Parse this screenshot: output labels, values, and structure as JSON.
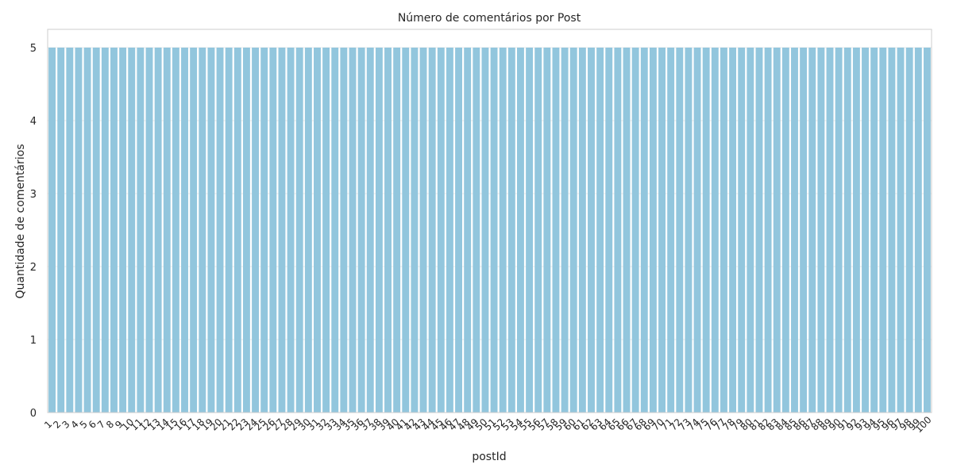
{
  "chart_data": {
    "type": "bar",
    "title": "Número de comentários por Post",
    "xlabel": "postId",
    "ylabel": "Quantidade de comentários",
    "categories": [
      "1",
      "2",
      "3",
      "4",
      "5",
      "6",
      "7",
      "8",
      "9",
      "10",
      "11",
      "12",
      "13",
      "14",
      "15",
      "16",
      "17",
      "18",
      "19",
      "20",
      "21",
      "22",
      "23",
      "24",
      "25",
      "26",
      "27",
      "28",
      "29",
      "30",
      "31",
      "32",
      "33",
      "34",
      "35",
      "36",
      "37",
      "38",
      "39",
      "40",
      "41",
      "42",
      "43",
      "44",
      "45",
      "46",
      "47",
      "48",
      "49",
      "50",
      "51",
      "52",
      "53",
      "54",
      "55",
      "56",
      "57",
      "58",
      "59",
      "60",
      "61",
      "62",
      "63",
      "64",
      "65",
      "66",
      "67",
      "68",
      "69",
      "70",
      "71",
      "72",
      "73",
      "74",
      "75",
      "76",
      "77",
      "78",
      "79",
      "80",
      "81",
      "82",
      "83",
      "84",
      "85",
      "86",
      "87",
      "88",
      "89",
      "90",
      "91",
      "92",
      "93",
      "94",
      "95",
      "96",
      "97",
      "98",
      "99",
      "100"
    ],
    "values": [
      5,
      5,
      5,
      5,
      5,
      5,
      5,
      5,
      5,
      5,
      5,
      5,
      5,
      5,
      5,
      5,
      5,
      5,
      5,
      5,
      5,
      5,
      5,
      5,
      5,
      5,
      5,
      5,
      5,
      5,
      5,
      5,
      5,
      5,
      5,
      5,
      5,
      5,
      5,
      5,
      5,
      5,
      5,
      5,
      5,
      5,
      5,
      5,
      5,
      5,
      5,
      5,
      5,
      5,
      5,
      5,
      5,
      5,
      5,
      5,
      5,
      5,
      5,
      5,
      5,
      5,
      5,
      5,
      5,
      5,
      5,
      5,
      5,
      5,
      5,
      5,
      5,
      5,
      5,
      5,
      5,
      5,
      5,
      5,
      5,
      5,
      5,
      5,
      5,
      5,
      5,
      5,
      5,
      5,
      5,
      5,
      5,
      5,
      5,
      5
    ],
    "ylim": [
      0,
      5.25
    ],
    "yticks": [
      0,
      1,
      2,
      3,
      4,
      5
    ],
    "grid": true,
    "bar_color": "#92c6dd",
    "frame_color": "#cccccc",
    "grid_color": "#ebebeb"
  }
}
